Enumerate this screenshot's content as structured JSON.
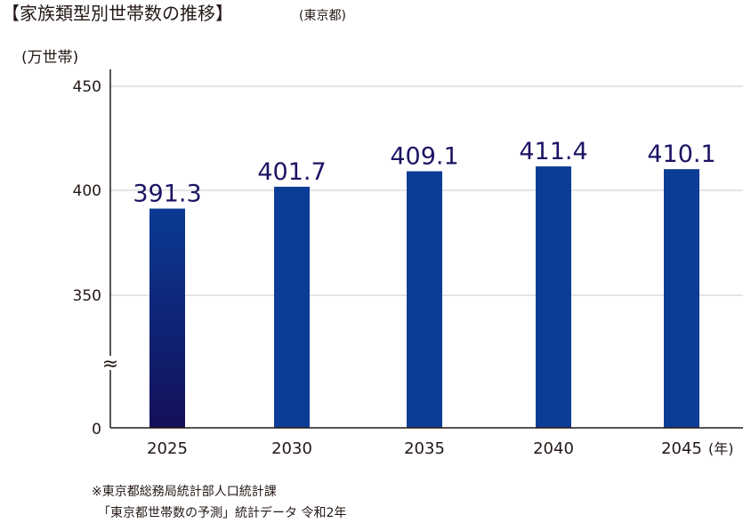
{
  "title": "【家族類型別世帯数の推移】",
  "title_note": "(東京都)",
  "source_lines": [
    "※東京都総務局統計部人口統計課",
    "「東京都世帯数の予測」統計データ 令和2年"
  ],
  "colors": {
    "bar": "#0c3d96",
    "bar_first_top": "#0a3a93",
    "bar_first_bottom": "#14105a",
    "value_label": "#1b1464",
    "grid": "#c8c8c8",
    "axis": "#231815"
  },
  "chart_data": {
    "type": "bar",
    "categories": [
      "2025",
      "2030",
      "2035",
      "2040",
      "2045"
    ],
    "values": [
      391.3,
      401.7,
      409.1,
      411.4,
      410.1
    ],
    "value_labels": [
      "391.3",
      "401.7",
      "409.1",
      "411.4",
      "410.1"
    ],
    "ylabel": "(万世帯)",
    "xunit": "(年)",
    "y_ticks": [
      "0",
      "350",
      "400",
      "450"
    ],
    "ylim": [
      0,
      450
    ],
    "axis_break": "≈",
    "broken_axis_note": "axis is broken between 0 and 350",
    "grid": true
  }
}
